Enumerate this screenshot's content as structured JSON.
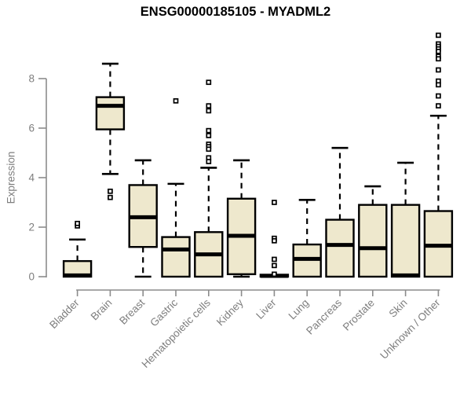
{
  "title": "ENSG00000185105 - MYADML2",
  "colors": {
    "background": "#ffffff",
    "box_fill": "#EEE8CD",
    "box_stroke": "#000000",
    "median": "#000000",
    "whisker": "#000000",
    "outlier_stroke": "#000000",
    "axis": "#8c8c8c",
    "tick_label": "#7e7e7e",
    "title": "#000000"
  },
  "chart_data": {
    "type": "boxplot",
    "title": "ENSG00000185105 - MYADML2",
    "xlabel": "",
    "ylabel": "Expression",
    "ylim": [
      0,
      9.8
    ],
    "yticks": [
      0,
      2,
      4,
      6,
      8
    ],
    "grid": false,
    "legend": "none",
    "categories": [
      "Bladder",
      "Brain",
      "Breast",
      "Gastric",
      "Hematopoietic cells",
      "Kidney",
      "Liver",
      "Lung",
      "Pancreas",
      "Prostate",
      "Skin",
      "Unknown / Other"
    ],
    "boxes": [
      {
        "category": "Bladder",
        "whisker_low": 0,
        "q1": 0,
        "median": 0.05,
        "q3": 0.63,
        "whisker_high": 1.5,
        "outliers": [
          2.05,
          2.15
        ]
      },
      {
        "category": "Brain",
        "whisker_low": 4.15,
        "q1": 5.95,
        "median": 6.9,
        "q3": 7.25,
        "whisker_high": 8.6,
        "outliers": [
          3.2,
          3.45
        ]
      },
      {
        "category": "Breast",
        "whisker_low": 0,
        "q1": 1.2,
        "median": 2.4,
        "q3": 3.7,
        "whisker_high": 4.7,
        "outliers": []
      },
      {
        "category": "Gastric",
        "whisker_low": 0,
        "q1": 0,
        "median": 1.1,
        "q3": 1.6,
        "whisker_high": 3.75,
        "outliers": [
          7.1
        ]
      },
      {
        "category": "Hematopoietic cells",
        "whisker_low": 0,
        "q1": 0,
        "median": 0.9,
        "q3": 1.8,
        "whisker_high": 4.4,
        "outliers": [
          7.85,
          6.9,
          6.7,
          5.9,
          5.7,
          5.35,
          5.25,
          5.15,
          4.8,
          4.65
        ]
      },
      {
        "category": "Kidney",
        "whisker_low": 0,
        "q1": 0.1,
        "median": 1.65,
        "q3": 3.15,
        "whisker_high": 4.7,
        "outliers": []
      },
      {
        "category": "Liver",
        "whisker_low": 0,
        "q1": 0,
        "median": 0.03,
        "q3": 0.08,
        "whisker_high": 0.08,
        "outliers": [
          3.0,
          1.55,
          1.45,
          0.7,
          0.45,
          0.1
        ]
      },
      {
        "category": "Lung",
        "whisker_low": 0,
        "q1": 0,
        "median": 0.72,
        "q3": 1.3,
        "whisker_high": 3.1,
        "outliers": []
      },
      {
        "category": "Pancreas",
        "whisker_low": 0,
        "q1": 0,
        "median": 1.28,
        "q3": 2.3,
        "whisker_high": 5.2,
        "outliers": []
      },
      {
        "category": "Prostate",
        "whisker_low": 0,
        "q1": 0,
        "median": 1.15,
        "q3": 2.9,
        "whisker_high": 3.65,
        "outliers": []
      },
      {
        "category": "Skin",
        "whisker_low": 0,
        "q1": 0,
        "median": 0.05,
        "q3": 2.9,
        "whisker_high": 4.6,
        "outliers": []
      },
      {
        "category": "Unknown / Other",
        "whisker_low": 0,
        "q1": 0,
        "median": 1.25,
        "q3": 2.65,
        "whisker_high": 6.5,
        "outliers": [
          9.75,
          9.4,
          9.3,
          9.2,
          9.1,
          8.9,
          8.8,
          8.35,
          7.9,
          7.75,
          7.3,
          6.9
        ]
      }
    ]
  }
}
